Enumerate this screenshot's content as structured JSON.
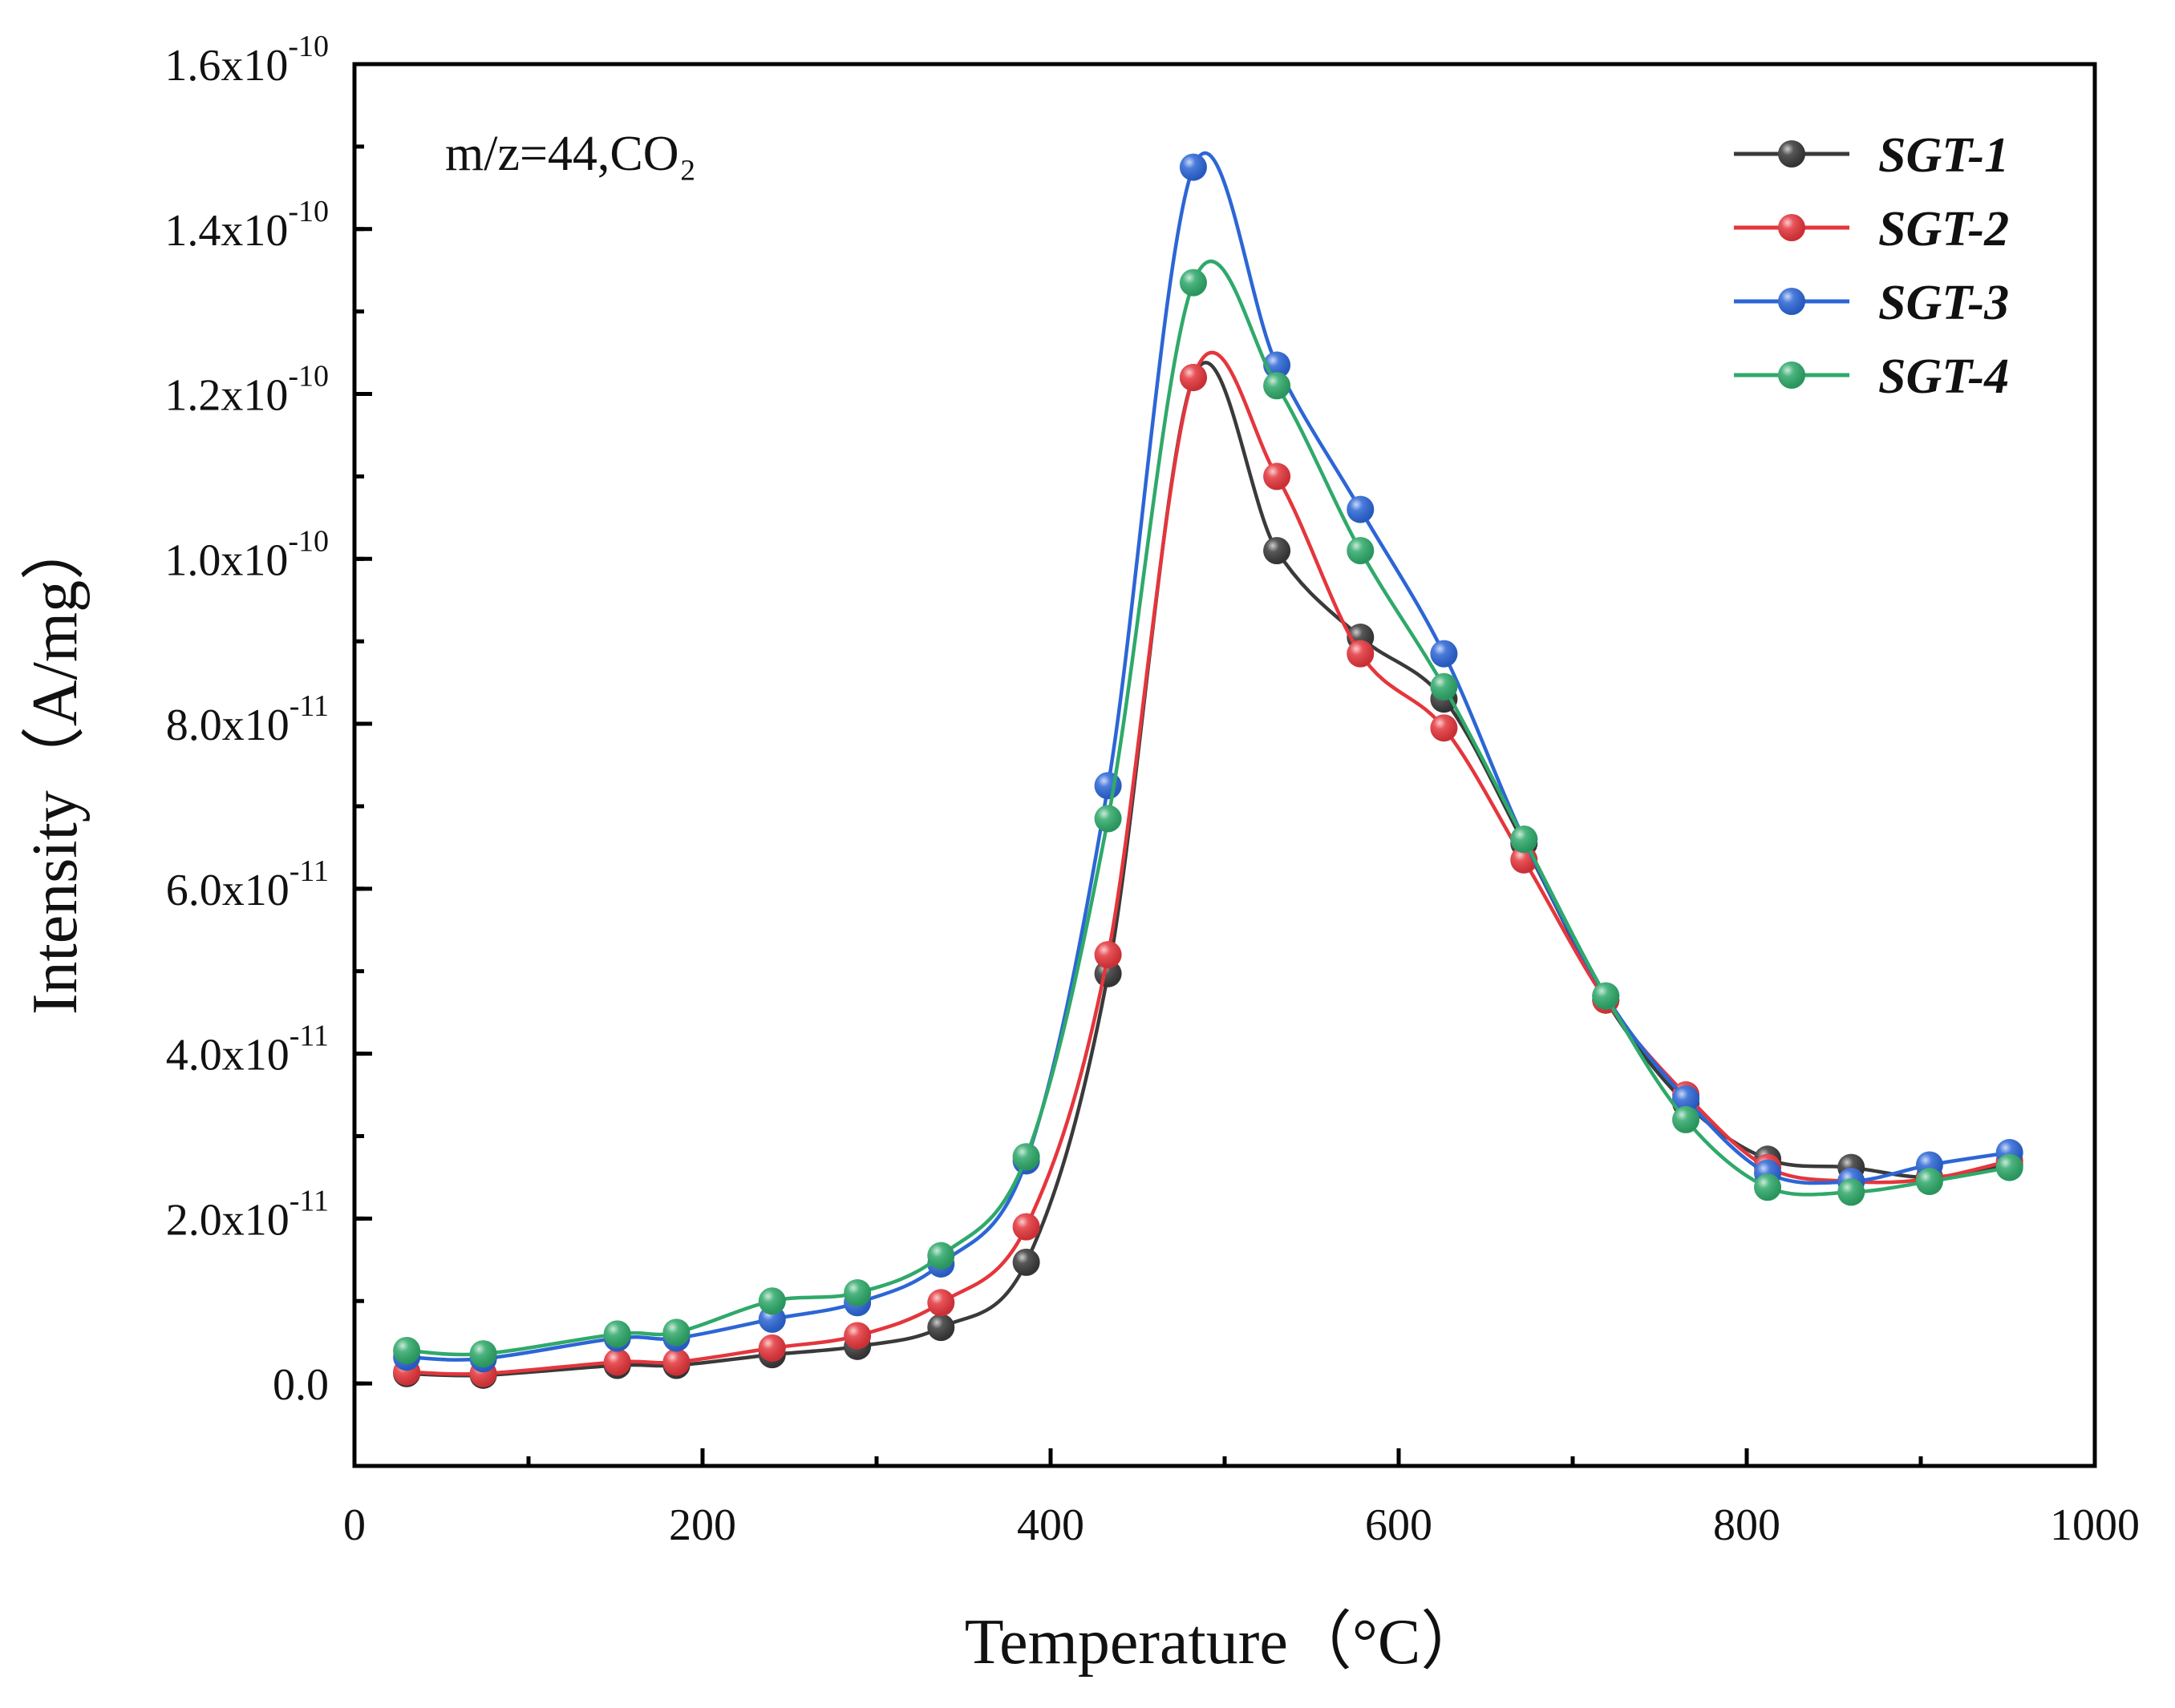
{
  "chart_data": {
    "type": "line",
    "title": "",
    "annotation": "m/z=44,CO₂",
    "xlabel": "Temperature（°C）",
    "ylabel": "Intensity（A/mg）",
    "xlim": [
      0,
      1000
    ],
    "ylim": [
      -1e-11,
      1.6e-10
    ],
    "grid": false,
    "legend_position": "top-right",
    "x_ticks": [
      {
        "value": 0,
        "label": "0"
      },
      {
        "value": 200,
        "label": "200"
      },
      {
        "value": 400,
        "label": "400"
      },
      {
        "value": 600,
        "label": "600"
      },
      {
        "value": 800,
        "label": "800"
      },
      {
        "value": 1000,
        "label": "1000"
      }
    ],
    "y_ticks": [
      {
        "value": 0,
        "mantissa": "0.0",
        "exp": ""
      },
      {
        "value": 2e-11,
        "mantissa": "2.0x10",
        "exp": "-11"
      },
      {
        "value": 4e-11,
        "mantissa": "4.0x10",
        "exp": "-11"
      },
      {
        "value": 6e-11,
        "mantissa": "6.0x10",
        "exp": "-11"
      },
      {
        "value": 8e-11,
        "mantissa": "8.0x10",
        "exp": "-11"
      },
      {
        "value": 1e-10,
        "mantissa": "1.0x10",
        "exp": "-10"
      },
      {
        "value": 1.2e-10,
        "mantissa": "1.2x10",
        "exp": "-10"
      },
      {
        "value": 1.4e-10,
        "mantissa": "1.4x10",
        "exp": "-10"
      },
      {
        "value": 1.6e-10,
        "mantissa": "1.6x10",
        "exp": "-10"
      }
    ],
    "series": [
      {
        "name": "SGT-1",
        "color": "#3a3a3a",
        "x": [
          30,
          74,
          151,
          185,
          240,
          289,
          337,
          386,
          433,
          482,
          530,
          578,
          626,
          672,
          719,
          765,
          812,
          860,
          905,
          951
        ],
        "y": [
          1.2e-12,
          1e-12,
          2.2e-12,
          2.2e-12,
          3.5e-12,
          4.5e-12,
          6.8e-12,
          1.47e-11,
          4.97e-11,
          1.22e-10,
          1.01e-10,
          9.05e-11,
          8.3e-11,
          6.55e-11,
          4.65e-11,
          3.4e-11,
          2.72e-11,
          2.62e-11,
          2.5e-11,
          2.65e-11
        ]
      },
      {
        "name": "SGT-2",
        "color": "#e4363c",
        "x": [
          30,
          74,
          151,
          185,
          240,
          289,
          337,
          386,
          433,
          482,
          530,
          578,
          626,
          672,
          719,
          765,
          812,
          860,
          905,
          951
        ],
        "y": [
          1.4e-12,
          1.2e-12,
          2.6e-12,
          2.6e-12,
          4.3e-12,
          5.8e-12,
          9.8e-12,
          1.9e-11,
          5.2e-11,
          1.22e-10,
          1.1e-10,
          8.85e-11,
          7.95e-11,
          6.35e-11,
          4.65e-11,
          3.5e-11,
          2.62e-11,
          2.45e-11,
          2.48e-11,
          2.7e-11
        ]
      },
      {
        "name": "SGT-3",
        "color": "#2c66d6",
        "x": [
          30,
          74,
          151,
          185,
          240,
          289,
          337,
          386,
          433,
          482,
          530,
          578,
          626,
          672,
          719,
          765,
          812,
          860,
          905,
          951
        ],
        "y": [
          3.2e-12,
          3e-12,
          5.5e-12,
          5.5e-12,
          7.8e-12,
          9.8e-12,
          1.45e-11,
          2.7e-11,
          7.25e-11,
          1.475e-10,
          1.235e-10,
          1.06e-10,
          8.85e-11,
          6.6e-11,
          4.7e-11,
          3.45e-11,
          2.55e-11,
          2.45e-11,
          2.65e-11,
          2.8e-11
        ]
      },
      {
        "name": "SGT-4",
        "color": "#2fa96a",
        "x": [
          30,
          74,
          151,
          185,
          240,
          289,
          337,
          386,
          433,
          482,
          530,
          578,
          626,
          672,
          719,
          765,
          812,
          860,
          905,
          951
        ],
        "y": [
          4e-12,
          3.6e-12,
          6e-12,
          6.2e-12,
          1e-11,
          1.1e-11,
          1.55e-11,
          2.75e-11,
          6.85e-11,
          1.335e-10,
          1.21e-10,
          1.01e-10,
          8.45e-11,
          6.6e-11,
          4.7e-11,
          3.2e-11,
          2.38e-11,
          2.32e-11,
          2.45e-11,
          2.62e-11
        ]
      }
    ]
  }
}
